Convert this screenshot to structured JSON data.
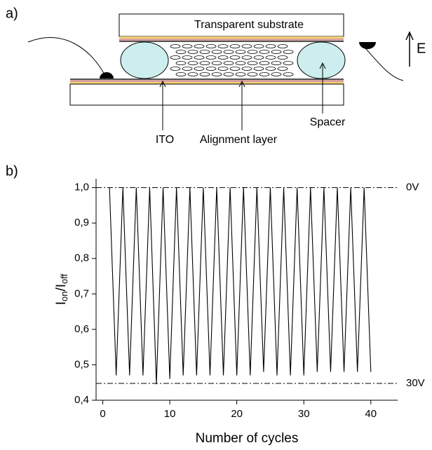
{
  "diagram": {
    "panel_label": "a)",
    "substrate_label": "Transparent substrate",
    "ito_label": "ITO",
    "alignment_label": "Alignment layer",
    "spacer_label": "Spacer",
    "field_label": "E"
  },
  "chart_data": {
    "type": "line",
    "panel_label": "b)",
    "xlabel": "Number of cycles",
    "ylabel": [
      "I",
      "on",
      "/I",
      "off"
    ],
    "x": [
      1,
      2,
      3,
      4,
      5,
      6,
      7,
      8,
      9,
      10,
      11,
      12,
      13,
      14,
      15,
      16,
      17,
      18,
      19,
      20,
      21,
      22,
      23,
      24,
      25,
      26,
      27,
      28,
      29,
      30,
      31,
      32,
      33,
      34,
      35,
      36,
      37,
      38,
      39,
      40
    ],
    "values": [
      1.0,
      0.47,
      1.0,
      0.47,
      1.0,
      0.47,
      1.0,
      0.445,
      1.0,
      0.46,
      1.0,
      0.47,
      1.0,
      0.47,
      1.0,
      0.47,
      1.0,
      0.47,
      1.0,
      0.47,
      1.0,
      0.47,
      1.0,
      0.48,
      1.0,
      0.47,
      1.0,
      0.47,
      1.0,
      0.47,
      1.0,
      0.48,
      1.0,
      0.48,
      1.0,
      0.48,
      1.0,
      0.48,
      1.0,
      0.48
    ],
    "color": "#000000",
    "xlim": [
      -1,
      44
    ],
    "xticks": [
      0,
      10,
      20,
      30,
      40
    ],
    "ylim": [
      0.4,
      1.025
    ],
    "yticks": [
      {
        "value": 0.4,
        "label": "0,4"
      },
      {
        "value": 0.5,
        "label": "0,5"
      },
      {
        "value": 0.6,
        "label": "0,6"
      },
      {
        "value": 0.7,
        "label": "0,7"
      },
      {
        "value": 0.8,
        "label": "0,8"
      },
      {
        "value": 0.9,
        "label": "0,9"
      },
      {
        "value": 1.0,
        "label": "1,0"
      }
    ],
    "reference_lines": [
      {
        "text": "0V",
        "value": 1.0
      },
      {
        "text": "30V",
        "value": 0.4475
      }
    ]
  }
}
